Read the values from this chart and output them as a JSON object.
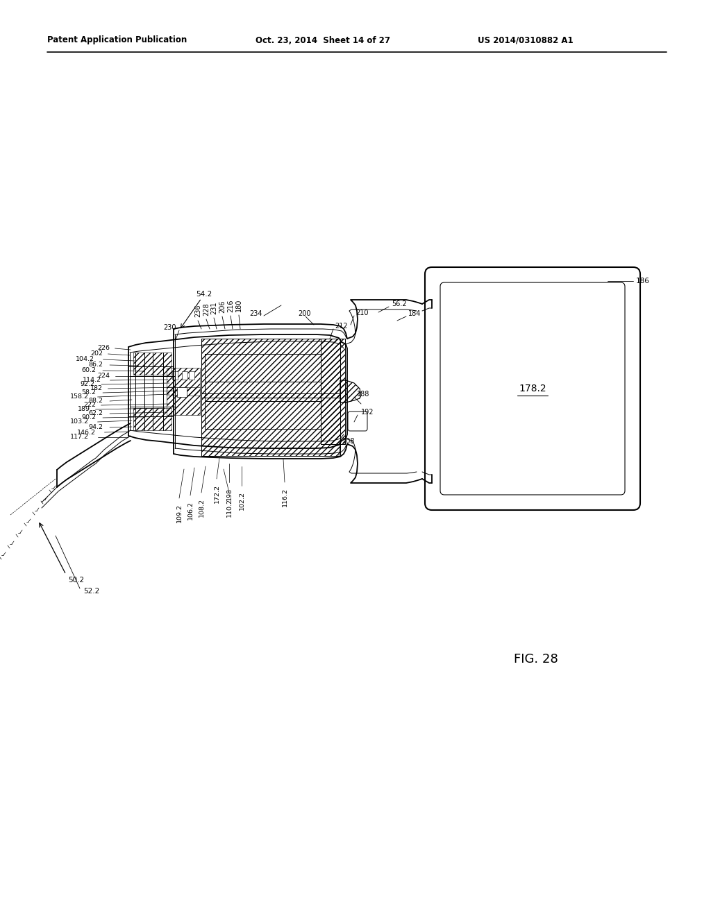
{
  "title_left": "Patent Application Publication",
  "title_center": "Oct. 23, 2014  Sheet 14 of 27",
  "title_right": "US 2014/0310882 A1",
  "fig_label": "FIG. 28",
  "bg_color": "#ffffff",
  "line_color": "#000000"
}
